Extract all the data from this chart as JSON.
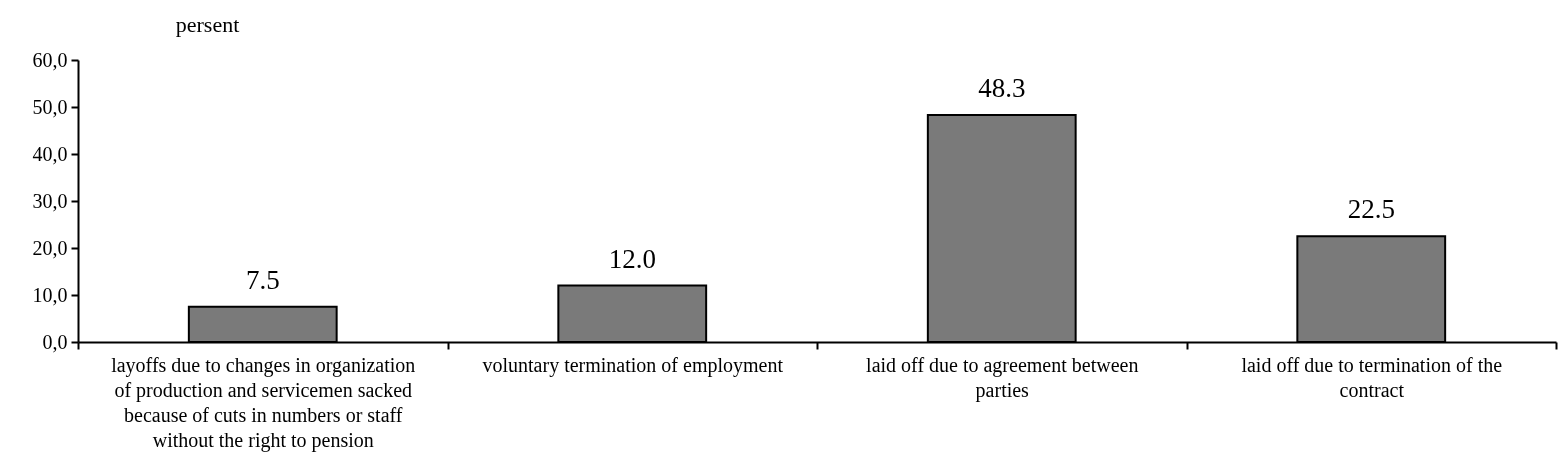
{
  "chart_data": {
    "type": "bar",
    "ylabel": "persent",
    "categories": [
      "layoffs due to changes in organization of production and servicemen sacked because of cuts in numbers or staff without the right to pension",
      "voluntary termination of employment",
      "laid off  due to agreement between parties",
      "laid off due to termination of the contract"
    ],
    "values": [
      7.5,
      12.0,
      48.3,
      22.5
    ],
    "value_labels": [
      "7.5",
      "12.0",
      "48.3",
      "22.5"
    ],
    "color": "#7a7a7a",
    "ylim": [
      0,
      60
    ],
    "yticks": [
      {
        "value": 0,
        "label": "0,0"
      },
      {
        "value": 10,
        "label": "10,0"
      },
      {
        "value": 20,
        "label": "20,0"
      },
      {
        "value": 30,
        "label": "30,0"
      },
      {
        "value": 40,
        "label": "40,0"
      },
      {
        "value": 50,
        "label": "50,0"
      },
      {
        "value": 60,
        "label": "60,0"
      }
    ],
    "grid": false
  }
}
